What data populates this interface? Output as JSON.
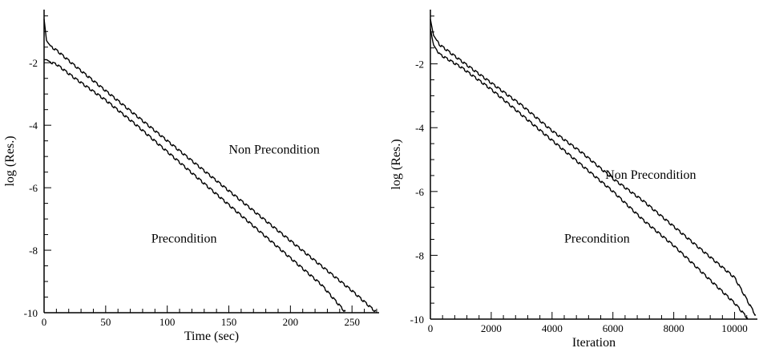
{
  "chart_data": [
    {
      "type": "line",
      "xlabel": "Time (sec)",
      "ylabel": "log (Res.)",
      "xlim": [
        0,
        272
      ],
      "ylim": [
        -10,
        -0.3
      ],
      "xticks": [
        0,
        50,
        100,
        150,
        200,
        250
      ],
      "xtick_labels": [
        "0",
        "50",
        "100",
        "150",
        "200",
        "250"
      ],
      "yticks": [
        -2,
        -4,
        -6,
        -8,
        -10
      ],
      "ytick_labels": [
        "-2",
        "-4",
        "-6",
        "-8",
        "-10"
      ],
      "grid": false,
      "series": [
        {
          "name": "Non Precondition",
          "x": [
            0,
            2,
            6,
            10,
            25,
            50,
            75,
            100,
            125,
            150,
            175,
            200,
            225,
            250,
            270
          ],
          "y": [
            -0.6,
            -1.3,
            -1.5,
            -1.6,
            -2.1,
            -2.9,
            -3.7,
            -4.5,
            -5.3,
            -6.1,
            -6.9,
            -7.7,
            -8.5,
            -9.3,
            -10.0
          ]
        },
        {
          "name": "Precondition",
          "x": [
            0,
            2,
            6,
            10,
            25,
            50,
            75,
            100,
            125,
            150,
            175,
            200,
            225,
            245
          ],
          "y": [
            -1.9,
            -1.9,
            -2.0,
            -2.05,
            -2.5,
            -3.2,
            -4.0,
            -4.85,
            -5.7,
            -6.55,
            -7.4,
            -8.25,
            -9.1,
            -10.0
          ]
        }
      ],
      "annotations": [
        {
          "text": "Non Precondition",
          "x": 150,
          "y": -4.9
        },
        {
          "text": "Precondition",
          "x": 87,
          "y": -7.75
        }
      ]
    },
    {
      "type": "line",
      "xlabel": "Iteration",
      "ylabel": "log (Res.)",
      "xlim": [
        0,
        10750
      ],
      "ylim": [
        -10,
        -0.3
      ],
      "xticks": [
        0,
        2000,
        4000,
        6000,
        8000,
        10000
      ],
      "xtick_labels": [
        "0",
        "2000",
        "4000",
        "6000",
        "8000",
        "10000"
      ],
      "yticks": [
        -2,
        -4,
        -6,
        -8,
        -10
      ],
      "ytick_labels": [
        "-2",
        "-4",
        "-6",
        "-8",
        "-10"
      ],
      "grid": false,
      "series": [
        {
          "name": "Non Precondition",
          "x": [
            0,
            100,
            300,
            1000,
            2000,
            3000,
            4000,
            5000,
            6000,
            7000,
            8000,
            9000,
            10000,
            10700
          ],
          "y": [
            -0.6,
            -1.1,
            -1.4,
            -1.9,
            -2.6,
            -3.3,
            -4.1,
            -4.8,
            -5.6,
            -6.3,
            -7.1,
            -7.9,
            -8.7,
            -9.9
          ]
        },
        {
          "name": "Precondition",
          "x": [
            0,
            100,
            300,
            1000,
            2000,
            3000,
            4000,
            5000,
            6000,
            7000,
            8000,
            9000,
            10000,
            10450
          ],
          "y": [
            -0.9,
            -1.4,
            -1.7,
            -2.1,
            -2.8,
            -3.6,
            -4.4,
            -5.2,
            -6.0,
            -6.9,
            -7.7,
            -8.6,
            -9.5,
            -10.0
          ]
        }
      ],
      "annotations": [
        {
          "text": "Non Precondition",
          "x": 5750,
          "y": -5.6
        },
        {
          "text": "Precondition",
          "x": 4400,
          "y": -7.6
        }
      ]
    }
  ]
}
